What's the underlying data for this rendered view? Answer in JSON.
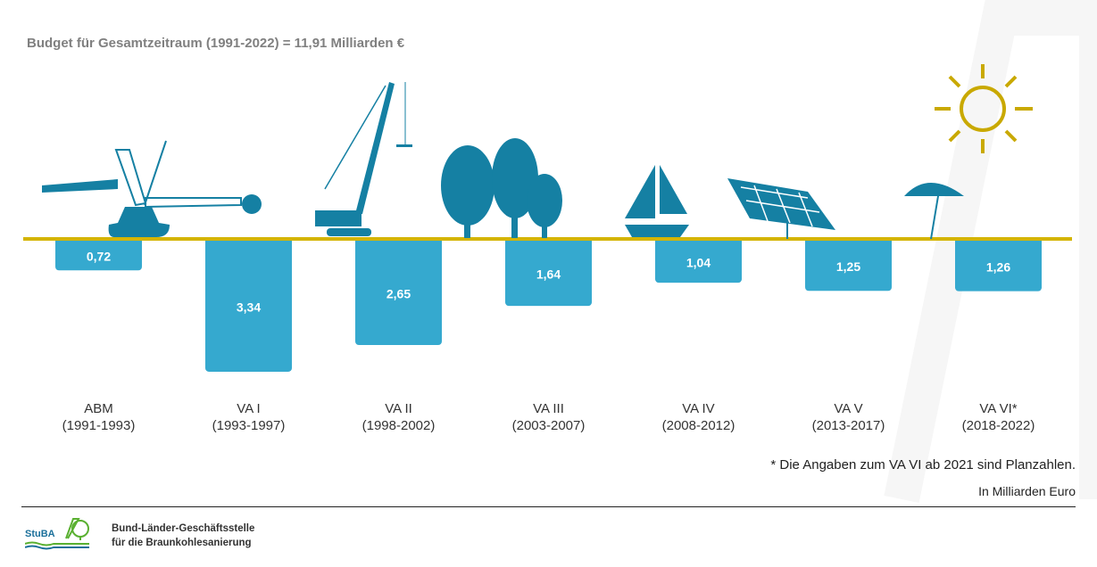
{
  "chart_data": {
    "type": "bar",
    "title": "Budget für Gesamtzeitraum (1991-2022) = 11,91 Milliarden €",
    "categories": [
      {
        "name": "ABM",
        "period": "(1991-1993)",
        "icon": "bucket-wheel-excavator-icon"
      },
      {
        "name": "VA I",
        "period": "(1993-1997)",
        "icon": "crawler-crane-icon"
      },
      {
        "name": "VA II",
        "period": "(1998-2002)",
        "icon": "trees-icon"
      },
      {
        "name": "VA III",
        "period": "(2003-2007)",
        "icon": "sailboat-icon"
      },
      {
        "name": "VA IV",
        "period": "(2008-2012)",
        "icon": "solar-panel-icon"
      },
      {
        "name": "VA V",
        "period": "(2013-2017)",
        "icon": "beach-umbrella-icon"
      },
      {
        "name": "VA VI*",
        "period": "(2018-2022)",
        "icon": "sun-icon"
      }
    ],
    "values": [
      0.72,
      3.34,
      2.65,
      1.64,
      1.04,
      1.25,
      1.26
    ],
    "value_labels": [
      "0,72",
      "3,34",
      "2,65",
      "1,64",
      "1,04",
      "1,25",
      "1,26"
    ],
    "ylabel": "In Milliarden Euro",
    "ylim": [
      0,
      3.5
    ],
    "orientation": "downward",
    "grid": false,
    "colors": {
      "bar": "#35a9cf",
      "baseline": "#d4b400",
      "icon": "#1580a3",
      "sun": "#c9a900"
    }
  },
  "footnote": "* Die Angaben zum VA VI ab 2021 sind Planzahlen.",
  "unit_note": "In Milliarden Euro",
  "logo": {
    "abbr": "StuBA",
    "line1": "Bund-Länder-Geschäftsstelle",
    "line2": "für die Braunkohlesanierung"
  }
}
